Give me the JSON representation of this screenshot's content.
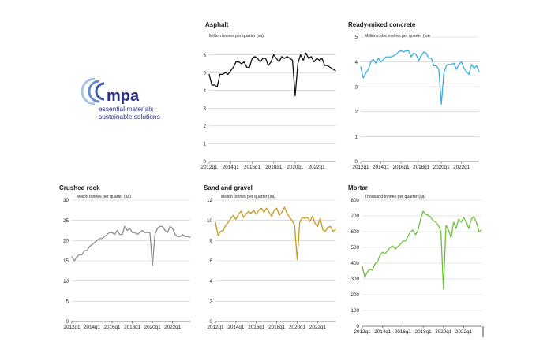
{
  "logo": {
    "name": "mpa",
    "tagline_1": "essential materials",
    "tagline_2": "sustainable solutions",
    "colors": [
      "#2a2f7f",
      "#3d56a8",
      "#6a8ccf",
      "#a9c2e6"
    ]
  },
  "x_ticks": [
    "2012q1",
    "2014q1",
    "2016q1",
    "2018q1",
    "2020q1",
    "2022q1"
  ],
  "chart_data": [
    {
      "type": "line",
      "title": "Asphalt",
      "ylabel": "Million tonnes per quarter (sa)",
      "ylim": [
        0,
        7
      ],
      "yticks": [
        0,
        1,
        2,
        3,
        4,
        5,
        6
      ],
      "color": "#111111",
      "x_start": "2012q1",
      "x_end": "2023q4",
      "values": [
        4.9,
        4.3,
        4.3,
        4.2,
        4.9,
        4.9,
        5.0,
        4.9,
        5.1,
        5.3,
        5.6,
        5.6,
        5.5,
        5.6,
        5.3,
        5.3,
        5.8,
        5.9,
        5.8,
        5.6,
        5.8,
        5.8,
        5.4,
        5.6,
        6.0,
        5.8,
        5.6,
        5.9,
        5.8,
        5.9,
        5.8,
        5.7,
        3.7,
        5.5,
        6.0,
        5.7,
        6.1,
        5.8,
        5.9,
        5.6,
        5.8,
        5.7,
        5.8,
        5.4,
        5.4,
        5.3,
        5.2,
        5.1
      ]
    },
    {
      "type": "line",
      "title": "Ready-mixed concrete",
      "ylabel": "Million cubic metres per quarter (sa)",
      "ylim": [
        0,
        5
      ],
      "yticks": [
        0,
        1,
        2,
        3,
        4,
        5
      ],
      "color": "#3aaee0",
      "x_start": "2012q1",
      "x_end": "2023q4",
      "values": [
        3.8,
        3.35,
        3.55,
        3.7,
        4.0,
        4.1,
        3.95,
        4.15,
        4.0,
        4.1,
        4.2,
        4.2,
        4.2,
        4.25,
        4.3,
        4.4,
        4.45,
        4.4,
        4.45,
        4.45,
        4.2,
        4.35,
        4.3,
        4.05,
        4.25,
        4.4,
        4.35,
        4.15,
        4.15,
        3.85,
        3.85,
        3.7,
        2.3,
        3.55,
        3.85,
        3.9,
        3.9,
        3.95,
        3.7,
        3.9,
        4.0,
        3.75,
        3.6,
        3.5,
        3.9,
        3.75,
        3.85,
        3.6
      ]
    },
    {
      "type": "line",
      "title": "Crushed rock",
      "ylabel": "Million tonnes per quarter (sa)",
      "ylim": [
        0,
        30
      ],
      "yticks": [
        0,
        5,
        10,
        15,
        20,
        25,
        30
      ],
      "color": "#8c8c8c",
      "x_start": "2012q1",
      "x_end": "2023q4",
      "values": [
        16.0,
        15.0,
        16.0,
        16.5,
        16.5,
        17.5,
        17.5,
        18.5,
        19.0,
        19.5,
        20.0,
        20.5,
        20.5,
        21.0,
        21.5,
        22.0,
        22.0,
        21.5,
        22.5,
        21.5,
        21.5,
        23.5,
        22.5,
        23.0,
        22.0,
        22.0,
        21.5,
        22.0,
        22.5,
        22.0,
        22.0,
        22.0,
        13.8,
        21.5,
        23.0,
        23.5,
        23.5,
        22.5,
        22.0,
        23.5,
        23.0,
        21.5,
        21.0,
        21.0,
        21.5,
        21.0,
        21.0,
        20.8
      ]
    },
    {
      "type": "line",
      "title": "Sand and gravel",
      "ylabel": "Million tonnes per quarter (sa)",
      "ylim": [
        0,
        12
      ],
      "yticks": [
        0,
        2,
        4,
        6,
        8,
        10,
        12
      ],
      "color": "#c79a1c",
      "x_start": "2012q1",
      "x_end": "2023q4",
      "values": [
        9.8,
        8.5,
        8.9,
        9.0,
        9.5,
        9.8,
        10.2,
        10.5,
        10.1,
        10.6,
        10.9,
        10.3,
        10.6,
        10.9,
        10.7,
        11.0,
        10.6,
        11.0,
        11.2,
        10.8,
        11.2,
        10.8,
        10.4,
        11.0,
        11.2,
        10.5,
        10.8,
        11.3,
        10.7,
        10.3,
        10.0,
        9.5,
        6.1,
        9.8,
        10.3,
        10.2,
        10.3,
        9.9,
        10.4,
        9.7,
        9.4,
        10.2,
        9.1,
        8.9,
        9.3,
        9.4,
        8.9,
        9.1
      ]
    },
    {
      "type": "line",
      "title": "Mortar",
      "ylabel": "Thousand tonnes per quarter (sa)",
      "ylim": [
        0,
        800
      ],
      "yticks": [
        0,
        100,
        200,
        300,
        400,
        500,
        600,
        700,
        800
      ],
      "color": "#6fbf3c",
      "x_start": "2012q1",
      "x_end": "2023q4",
      "values": [
        380,
        310,
        345,
        360,
        355,
        395,
        410,
        450,
        470,
        460,
        480,
        500,
        510,
        490,
        505,
        520,
        540,
        540,
        570,
        600,
        610,
        580,
        610,
        680,
        730,
        710,
        705,
        690,
        670,
        660,
        640,
        600,
        235,
        640,
        610,
        560,
        660,
        620,
        680,
        660,
        690,
        660,
        620,
        680,
        695,
        660,
        600,
        610
      ]
    }
  ]
}
